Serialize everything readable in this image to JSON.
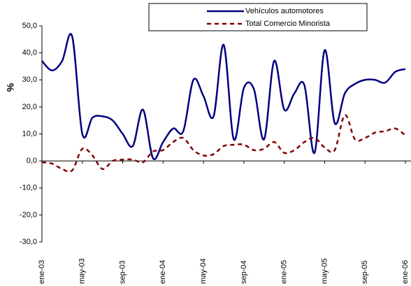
{
  "chart_data": {
    "type": "line",
    "ylabel": "%",
    "categories": [
      "ene-03",
      null,
      null,
      null,
      "may-03",
      null,
      null,
      null,
      "sep-03",
      null,
      null,
      null,
      "ene-04",
      null,
      null,
      null,
      "may-04",
      null,
      null,
      null,
      "sep-04",
      null,
      null,
      null,
      "ene-05",
      null,
      null,
      null,
      "may-05",
      null,
      null,
      null,
      "sep-05",
      null,
      null,
      null,
      "ene-06"
    ],
    "series": [
      {
        "name": "Vehículos automotores",
        "color": "#000080",
        "dash": false,
        "values": [
          37,
          33.5,
          37,
          46,
          10,
          16,
          16.5,
          15,
          10,
          5.5,
          19,
          1,
          7,
          12,
          11,
          30,
          24,
          16.5,
          43,
          8,
          27,
          26.5,
          8,
          37,
          19,
          25,
          28,
          3,
          41,
          14,
          25,
          28.5,
          30,
          30,
          29,
          33,
          34
        ]
      },
      {
        "name": "Total Comercio Minorista",
        "color": "#800000",
        "dash": true,
        "values": [
          -0.5,
          -1,
          -3,
          -3.5,
          4.5,
          2,
          -3,
          0,
          0.5,
          0.5,
          -0.5,
          3.5,
          4,
          7,
          8.5,
          4,
          2,
          2.5,
          5.5,
          6,
          6,
          4,
          4.5,
          7,
          3,
          4,
          7,
          8.5,
          5,
          4,
          17,
          8,
          8.5,
          10.5,
          11,
          12,
          9.5
        ]
      }
    ],
    "ylim": [
      -30,
      50
    ],
    "yticks": [
      {
        "value": -30,
        "label": "-30,0"
      },
      {
        "value": -20,
        "label": "-20,0"
      },
      {
        "value": -10,
        "label": "-10,0"
      },
      {
        "value": 0,
        "label": "0,0"
      },
      {
        "value": 10,
        "label": "10,0"
      },
      {
        "value": 20,
        "label": "20,0"
      },
      {
        "value": 30,
        "label": "30,0"
      },
      {
        "value": 40,
        "label": "40,0"
      },
      {
        "value": 50,
        "label": "50,0"
      }
    ],
    "grid": false,
    "legend": "top-right"
  }
}
